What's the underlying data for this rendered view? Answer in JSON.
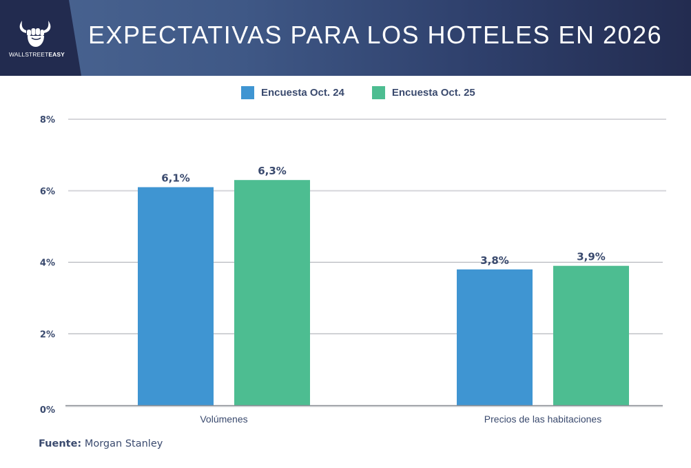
{
  "header": {
    "title": "EXPECTATIVAS PARA LOS HOTELES EN 2026",
    "logo": {
      "text_light": "WALLSTREET",
      "text_bold": "EASY",
      "icon": "bull-fist-icon"
    }
  },
  "colors": {
    "series1": "#3f95d2",
    "series2": "#4dbd91",
    "text": "#3a4a6e",
    "grid": "#d3d3d8",
    "axis": "#8a8d94"
  },
  "chart_data": {
    "type": "bar",
    "title": "EXPECTATIVAS PARA LOS HOTELES EN 2026",
    "categories": [
      "Volúmenes",
      "Precios de las habitaciones"
    ],
    "series": [
      {
        "name": "Encuesta Oct. 24",
        "values": [
          6.1,
          3.8
        ],
        "labels": [
          "6,1%",
          "3,8%"
        ]
      },
      {
        "name": "Encuesta Oct. 25",
        "values": [
          6.3,
          3.9
        ],
        "labels": [
          "6,3%",
          "3,9%"
        ]
      }
    ],
    "yticks": [
      0,
      2,
      4,
      6,
      8
    ],
    "ytick_labels": [
      "0%",
      "2%",
      "4%",
      "6%",
      "8%"
    ],
    "ylim": [
      0,
      8
    ],
    "xlabel": "",
    "ylabel": "",
    "grid": true,
    "legend_position": "top-center"
  },
  "footer": {
    "source_label": "Fuente:",
    "source_value": "Morgan Stanley"
  }
}
